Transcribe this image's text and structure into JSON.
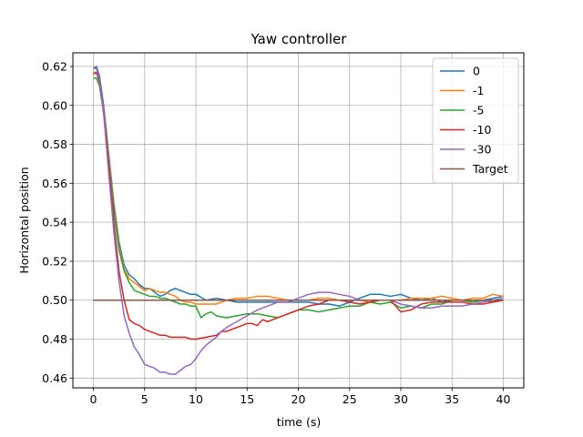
{
  "chart_data": {
    "type": "line",
    "title": "Yaw controller",
    "xlabel": "time (s)",
    "ylabel": "Horizontal position",
    "xlim": [
      -2,
      42
    ],
    "ylim": [
      0.455,
      0.627
    ],
    "xticks": [
      0,
      5,
      10,
      15,
      20,
      25,
      30,
      35,
      40
    ],
    "yticks": [
      0.46,
      0.48,
      0.5,
      0.52,
      0.54,
      0.56,
      0.58,
      0.6,
      0.62
    ],
    "ytick_labels": [
      "0.46",
      "0.48",
      "0.50",
      "0.52",
      "0.54",
      "0.56",
      "0.58",
      "0.60",
      "0.62"
    ],
    "grid": true,
    "legend_position": "top-right",
    "series": [
      {
        "name": "0",
        "color": "#1f77b4",
        "x": [
          0,
          0.3,
          0.6,
          1,
          1.5,
          2,
          2.5,
          3,
          3.5,
          4,
          4.5,
          5,
          5.5,
          6,
          6.5,
          7,
          7.5,
          8,
          8.5,
          9,
          9.5,
          10,
          11,
          12,
          13,
          14,
          15,
          16,
          17,
          18,
          19,
          20,
          21,
          22,
          23,
          24,
          25,
          26,
          27,
          28,
          29,
          30,
          31,
          32,
          33,
          34,
          35,
          36,
          37,
          38,
          39,
          40
        ],
        "y": [
          0.619,
          0.62,
          0.615,
          0.6,
          0.575,
          0.55,
          0.53,
          0.518,
          0.513,
          0.511,
          0.508,
          0.506,
          0.506,
          0.504,
          0.502,
          0.503,
          0.505,
          0.506,
          0.505,
          0.504,
          0.503,
          0.503,
          0.5,
          0.501,
          0.5,
          0.499,
          0.499,
          0.499,
          0.499,
          0.499,
          0.499,
          0.499,
          0.499,
          0.498,
          0.498,
          0.497,
          0.499,
          0.501,
          0.503,
          0.503,
          0.502,
          0.503,
          0.501,
          0.5,
          0.501,
          0.499,
          0.5,
          0.5,
          0.499,
          0.5,
          0.501,
          0.502
        ]
      },
      {
        "name": "-1",
        "color": "#ff7f0e",
        "x": [
          0,
          0.3,
          0.6,
          1,
          1.5,
          2,
          2.5,
          3,
          3.5,
          4,
          4.5,
          5,
          5.5,
          6,
          6.5,
          7,
          7.5,
          8,
          8.5,
          9,
          9.5,
          10,
          11,
          12,
          13,
          14,
          15,
          16,
          17,
          18,
          19,
          20,
          21,
          22,
          23,
          24,
          25,
          26,
          27,
          28,
          29,
          30,
          31,
          32,
          33,
          34,
          35,
          36,
          37,
          38,
          39,
          40
        ],
        "y": [
          0.617,
          0.617,
          0.612,
          0.598,
          0.573,
          0.548,
          0.528,
          0.516,
          0.511,
          0.509,
          0.507,
          0.505,
          0.506,
          0.505,
          0.504,
          0.504,
          0.503,
          0.502,
          0.5,
          0.499,
          0.499,
          0.498,
          0.498,
          0.498,
          0.5,
          0.501,
          0.501,
          0.502,
          0.502,
          0.501,
          0.5,
          0.5,
          0.5,
          0.501,
          0.501,
          0.5,
          0.5,
          0.5,
          0.499,
          0.5,
          0.5,
          0.5,
          0.501,
          0.501,
          0.501,
          0.502,
          0.501,
          0.5,
          0.501,
          0.501,
          0.503,
          0.502
        ]
      },
      {
        "name": "-5",
        "color": "#2ca02c",
        "x": [
          0,
          0.3,
          0.6,
          1,
          1.5,
          2,
          2.5,
          3,
          3.5,
          4,
          4.5,
          5,
          5.5,
          6,
          6.5,
          7,
          7.5,
          8,
          8.5,
          9,
          9.5,
          10,
          10.5,
          11,
          11.5,
          12,
          13,
          14,
          15,
          16,
          17,
          18,
          19,
          20,
          21,
          22,
          23,
          24,
          25,
          26,
          27,
          28,
          29,
          30,
          31,
          32,
          33,
          34,
          35,
          36,
          37,
          38,
          39,
          40
        ],
        "y": [
          0.614,
          0.614,
          0.61,
          0.596,
          0.571,
          0.546,
          0.526,
          0.515,
          0.509,
          0.505,
          0.504,
          0.503,
          0.502,
          0.502,
          0.501,
          0.501,
          0.5,
          0.499,
          0.498,
          0.498,
          0.497,
          0.497,
          0.491,
          0.493,
          0.494,
          0.492,
          0.491,
          0.492,
          0.493,
          0.493,
          0.492,
          0.491,
          0.493,
          0.495,
          0.495,
          0.494,
          0.495,
          0.496,
          0.497,
          0.497,
          0.499,
          0.498,
          0.499,
          0.496,
          0.497,
          0.496,
          0.498,
          0.498,
          0.5,
          0.5,
          0.499,
          0.5,
          0.499,
          0.5
        ]
      },
      {
        "name": "-10",
        "color": "#d62728",
        "x": [
          0,
          0.3,
          0.6,
          1,
          1.5,
          2,
          2.5,
          3,
          3.5,
          4,
          4.5,
          5,
          5.5,
          6,
          6.5,
          7,
          7.5,
          8,
          8.5,
          9,
          9.5,
          10,
          11,
          12,
          12.5,
          13,
          14,
          15,
          15.5,
          16,
          16.5,
          17,
          18,
          19,
          20,
          21,
          22,
          23,
          24,
          25,
          26,
          27,
          28,
          29,
          30,
          31,
          32,
          33,
          34,
          35,
          36,
          37,
          38,
          39,
          40
        ],
        "y": [
          0.616,
          0.617,
          0.612,
          0.597,
          0.569,
          0.54,
          0.515,
          0.5,
          0.49,
          0.488,
          0.487,
          0.485,
          0.484,
          0.483,
          0.482,
          0.482,
          0.481,
          0.481,
          0.481,
          0.481,
          0.48,
          0.48,
          0.481,
          0.482,
          0.484,
          0.484,
          0.486,
          0.488,
          0.488,
          0.487,
          0.49,
          0.489,
          0.491,
          0.493,
          0.495,
          0.497,
          0.498,
          0.5,
          0.5,
          0.499,
          0.498,
          0.499,
          0.5,
          0.5,
          0.494,
          0.495,
          0.498,
          0.499,
          0.499,
          0.499,
          0.499,
          0.498,
          0.498,
          0.499,
          0.5
        ]
      },
      {
        "name": "-30",
        "color": "#9467bd",
        "x": [
          0,
          0.3,
          0.6,
          1,
          1.5,
          2,
          2.5,
          3,
          3.5,
          4,
          4.5,
          5,
          5.5,
          6,
          6.5,
          7,
          7.5,
          8,
          8.5,
          9,
          9.5,
          10,
          10.5,
          11,
          11.5,
          12,
          12.5,
          13,
          14,
          15,
          16,
          17,
          18,
          19,
          20,
          21,
          22,
          23,
          24,
          25,
          26,
          27,
          28,
          29,
          30,
          31,
          32,
          33,
          34,
          35,
          36,
          37,
          38,
          39,
          40
        ],
        "y": [
          0.619,
          0.619,
          0.613,
          0.596,
          0.565,
          0.535,
          0.51,
          0.492,
          0.483,
          0.476,
          0.472,
          0.467,
          0.466,
          0.465,
          0.463,
          0.463,
          0.462,
          0.462,
          0.464,
          0.466,
          0.467,
          0.47,
          0.474,
          0.477,
          0.479,
          0.481,
          0.484,
          0.486,
          0.489,
          0.492,
          0.495,
          0.497,
          0.499,
          0.499,
          0.501,
          0.503,
          0.504,
          0.504,
          0.503,
          0.502,
          0.5,
          0.5,
          0.5,
          0.5,
          0.498,
          0.497,
          0.496,
          0.496,
          0.497,
          0.497,
          0.497,
          0.498,
          0.499,
          0.5,
          0.501
        ]
      },
      {
        "name": "Target",
        "color": "#8c564b",
        "x": [
          0,
          40
        ],
        "y": [
          0.5,
          0.5
        ]
      }
    ]
  }
}
